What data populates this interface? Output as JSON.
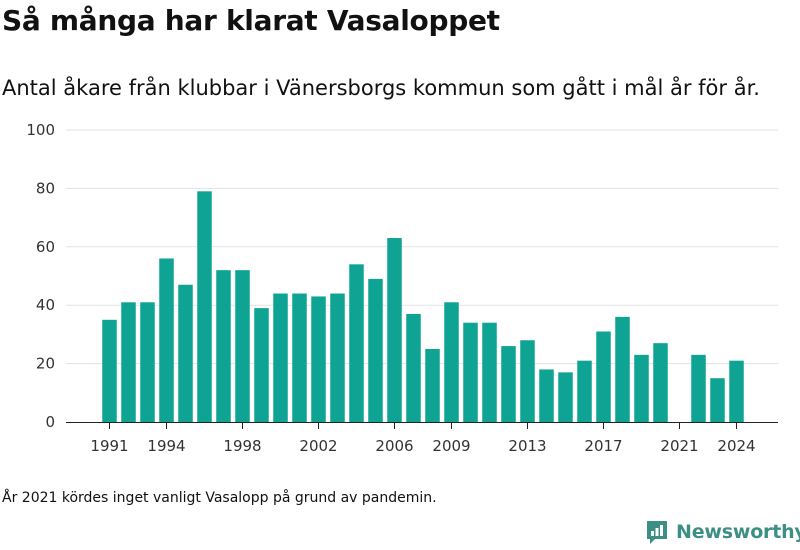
{
  "chart_data": {
    "type": "bar",
    "title": "Så många har klarat Vasaloppet",
    "subtitle": "Antal åkare från klubbar i Vänersborgs kommun som gått i mål år för år.",
    "xlabel": "",
    "ylabel": "",
    "ylim": [
      0,
      100
    ],
    "yticks": [
      0,
      20,
      40,
      60,
      80,
      100
    ],
    "xticks": [
      1991,
      1994,
      1998,
      2002,
      2006,
      2009,
      2013,
      2017,
      2021,
      2024
    ],
    "grid": true,
    "bar_color": "#0fa394",
    "categories": [
      1991,
      1992,
      1993,
      1994,
      1995,
      1996,
      1997,
      1998,
      1999,
      2000,
      2001,
      2002,
      2003,
      2004,
      2005,
      2006,
      2007,
      2008,
      2009,
      2010,
      2011,
      2012,
      2013,
      2014,
      2015,
      2016,
      2017,
      2018,
      2019,
      2020,
      2021,
      2022,
      2023,
      2024
    ],
    "values": [
      35,
      41,
      41,
      56,
      47,
      79,
      52,
      52,
      39,
      44,
      44,
      43,
      44,
      54,
      49,
      63,
      37,
      25,
      41,
      34,
      34,
      26,
      28,
      18,
      17,
      21,
      31,
      36,
      23,
      27,
      0,
      23,
      15,
      21
    ]
  },
  "footnote": "År 2021 kördes inget vanligt Vasalopp på grund av pandemin.",
  "brand": {
    "name": "Newsworthy",
    "logo_icon": "newsworthy-chart-logo-icon",
    "color": "#3d8f86"
  }
}
